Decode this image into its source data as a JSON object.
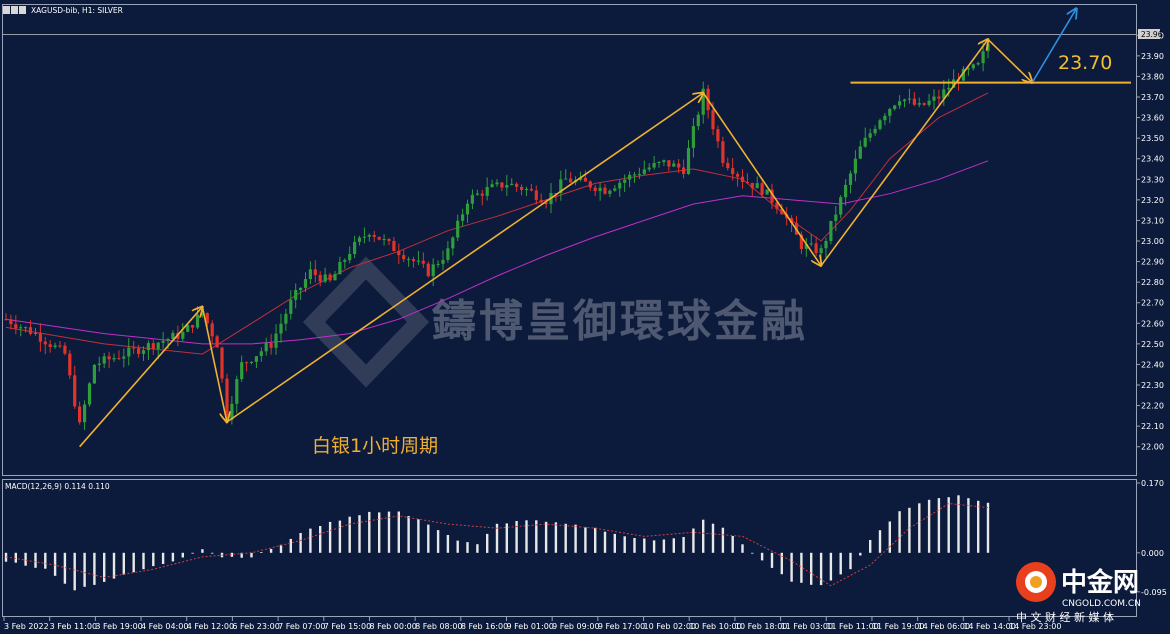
{
  "header": {
    "symbol_info": "XAGUSD-bib, H1: SILVER"
  },
  "annotations": {
    "level_label": "23.70",
    "period_label": "白银1小时周期",
    "watermark": "鑄博皇御環球金融",
    "current_price": "23.96"
  },
  "logo": {
    "name": "中金网",
    "subtitle": "CNGOLD.COM.CN",
    "tagline": "中 文 财 经 新 媒 体"
  },
  "indicator": {
    "title": "MACD(12,26,9) 0.114 0.110"
  },
  "colors": {
    "background": "#0c1a3c",
    "bull": "#2e9e3a",
    "bear": "#e0342a",
    "ma_fast": "#c0303a",
    "ma_slow": "#c030c8",
    "arrows": "#f0b030",
    "arrow_projection": "#2f8fe0",
    "macd_hist": "#e8e8e8",
    "macd_signal": "#d04040"
  },
  "chart_data": [
    {
      "type": "candlestick",
      "symbol": "XAGUSD-bib",
      "timeframe": "H1",
      "ylim": [
        21.95,
        24.05
      ],
      "y_ticks": [
        "24.00",
        "23.90",
        "23.80",
        "23.70",
        "23.60",
        "23.50",
        "23.40",
        "23.30",
        "23.20",
        "23.10",
        "23.00",
        "22.90",
        "22.80",
        "22.70",
        "22.60",
        "22.50",
        "22.40",
        "22.30",
        "22.20",
        "22.10",
        "22.00"
      ],
      "x_ticks": [
        "3 Feb 2022",
        "3 Feb 11:00",
        "3 Feb 19:00",
        "4 Feb 04:00",
        "4 Feb 12:00",
        "6 Feb 23:00",
        "7 Feb 07:00",
        "7 Feb 15:00",
        "8 Feb 00:00",
        "8 Feb 08:00",
        "8 Feb 16:00",
        "9 Feb 01:00",
        "9 Feb 09:00",
        "9 Feb 17:00",
        "10 Feb 02:00",
        "10 Feb 10:00",
        "10 Feb 18:00",
        "11 Feb 03:00",
        "11 Feb 11:00",
        "11 Feb 19:00",
        "14 Feb 06:00",
        "14 Feb 14:00",
        "14 Feb 23:00"
      ],
      "price_path": [
        [
          0,
          22.62
        ],
        [
          6,
          22.55
        ],
        [
          12,
          22.45
        ],
        [
          15,
          22.1
        ],
        [
          18,
          22.4
        ],
        [
          24,
          22.45
        ],
        [
          30,
          22.5
        ],
        [
          36,
          22.55
        ],
        [
          40,
          22.65
        ],
        [
          43,
          22.5
        ],
        [
          45,
          22.15
        ],
        [
          48,
          22.4
        ],
        [
          54,
          22.5
        ],
        [
          58,
          22.7
        ],
        [
          62,
          22.85
        ],
        [
          66,
          22.8
        ],
        [
          70,
          22.95
        ],
        [
          74,
          23.05
        ],
        [
          78,
          22.98
        ],
        [
          82,
          22.92
        ],
        [
          86,
          22.85
        ],
        [
          90,
          22.95
        ],
        [
          94,
          23.2
        ],
        [
          98,
          23.25
        ],
        [
          102,
          23.28
        ],
        [
          106,
          23.25
        ],
        [
          110,
          23.2
        ],
        [
          114,
          23.3
        ],
        [
          118,
          23.28
        ],
        [
          122,
          23.25
        ],
        [
          126,
          23.3
        ],
        [
          130,
          23.35
        ],
        [
          134,
          23.38
        ],
        [
          138,
          23.35
        ],
        [
          142,
          23.72
        ],
        [
          146,
          23.4
        ],
        [
          150,
          23.3
        ],
        [
          154,
          23.25
        ],
        [
          158,
          23.15
        ],
        [
          162,
          22.98
        ],
        [
          166,
          22.95
        ],
        [
          170,
          23.2
        ],
        [
          174,
          23.45
        ],
        [
          178,
          23.6
        ],
        [
          182,
          23.7
        ],
        [
          186,
          23.65
        ],
        [
          190,
          23.7
        ],
        [
          194,
          23.8
        ],
        [
          198,
          23.85
        ],
        [
          200,
          23.96
        ]
      ],
      "lines": [
        {
          "name": "ma_fast",
          "color": "#c0303a",
          "points": [
            [
              0,
              22.58
            ],
            [
              20,
              22.5
            ],
            [
              40,
              22.45
            ],
            [
              50,
              22.6
            ],
            [
              60,
              22.75
            ],
            [
              70,
              22.87
            ],
            [
              80,
              22.95
            ],
            [
              90,
              23.05
            ],
            [
              100,
              23.12
            ],
            [
              110,
              23.2
            ],
            [
              120,
              23.28
            ],
            [
              130,
              23.32
            ],
            [
              140,
              23.35
            ],
            [
              150,
              23.3
            ],
            [
              160,
              23.1
            ],
            [
              166,
              23.0
            ],
            [
              172,
              23.15
            ],
            [
              180,
              23.4
            ],
            [
              190,
              23.6
            ],
            [
              200,
              23.72
            ]
          ]
        },
        {
          "name": "ma_slow",
          "color": "#c030c8",
          "points": [
            [
              0,
              22.62
            ],
            [
              20,
              22.55
            ],
            [
              40,
              22.5
            ],
            [
              50,
              22.5
            ],
            [
              60,
              22.52
            ],
            [
              70,
              22.55
            ],
            [
              80,
              22.62
            ],
            [
              90,
              22.72
            ],
            [
              100,
              22.83
            ],
            [
              110,
              22.93
            ],
            [
              120,
              23.02
            ],
            [
              130,
              23.1
            ],
            [
              140,
              23.18
            ],
            [
              150,
              23.22
            ],
            [
              160,
              23.2
            ],
            [
              170,
              23.18
            ],
            [
              180,
              23.23
            ],
            [
              190,
              23.3
            ],
            [
              200,
              23.39
            ]
          ]
        }
      ],
      "arrow_points": [
        [
          15,
          22.0
        ],
        [
          40,
          22.68
        ],
        [
          45,
          22.12
        ],
        [
          142,
          23.72
        ],
        [
          166,
          22.88
        ],
        [
          200,
          23.98
        ],
        [
          209,
          23.77
        ]
      ],
      "arrow_projection": [
        [
          209,
          23.77
        ],
        [
          218,
          24.13
        ]
      ],
      "support_level": 23.77
    },
    {
      "type": "bar",
      "name": "MACD(12,26,9)",
      "ylim": [
        -0.11,
        0.17
      ],
      "y_ticks": [
        "0.170",
        "0.000",
        "-0.095"
      ],
      "hist_path": [
        [
          0,
          -0.02
        ],
        [
          8,
          -0.04
        ],
        [
          14,
          -0.09
        ],
        [
          20,
          -0.07
        ],
        [
          28,
          -0.04
        ],
        [
          34,
          -0.02
        ],
        [
          40,
          0.01
        ],
        [
          44,
          -0.01
        ],
        [
          50,
          -0.01
        ],
        [
          56,
          0.02
        ],
        [
          62,
          0.06
        ],
        [
          68,
          0.08
        ],
        [
          74,
          0.1
        ],
        [
          80,
          0.1
        ],
        [
          86,
          0.07
        ],
        [
          92,
          0.03
        ],
        [
          96,
          0.02
        ],
        [
          100,
          0.07
        ],
        [
          106,
          0.08
        ],
        [
          114,
          0.07
        ],
        [
          120,
          0.06
        ],
        [
          126,
          0.04
        ],
        [
          132,
          0.03
        ],
        [
          138,
          0.04
        ],
        [
          142,
          0.08
        ],
        [
          146,
          0.06
        ],
        [
          150,
          0.02
        ],
        [
          154,
          -0.02
        ],
        [
          160,
          -0.07
        ],
        [
          166,
          -0.08
        ],
        [
          172,
          -0.04
        ],
        [
          176,
          0.03
        ],
        [
          182,
          0.1
        ],
        [
          188,
          0.13
        ],
        [
          194,
          0.14
        ],
        [
          200,
          0.12
        ]
      ],
      "signal_path": [
        [
          0,
          -0.01
        ],
        [
          10,
          -0.03
        ],
        [
          20,
          -0.06
        ],
        [
          30,
          -0.04
        ],
        [
          40,
          -0.01
        ],
        [
          50,
          0.0
        ],
        [
          60,
          0.03
        ],
        [
          70,
          0.07
        ],
        [
          80,
          0.09
        ],
        [
          90,
          0.07
        ],
        [
          100,
          0.06
        ],
        [
          110,
          0.07
        ],
        [
          120,
          0.06
        ],
        [
          130,
          0.04
        ],
        [
          140,
          0.05
        ],
        [
          150,
          0.04
        ],
        [
          160,
          -0.02
        ],
        [
          168,
          -0.08
        ],
        [
          176,
          -0.03
        ],
        [
          184,
          0.06
        ],
        [
          192,
          0.12
        ],
        [
          200,
          0.11
        ]
      ]
    }
  ]
}
